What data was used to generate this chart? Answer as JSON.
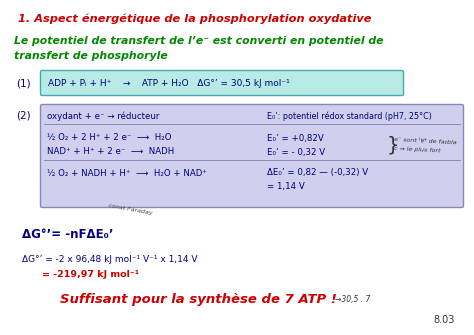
{
  "bg_color": "#ffffff",
  "title": "1. Aspect énergétique de la phosphorylation oxydative",
  "title_color": "#cc0000",
  "subtitle_line1": "Le potentiel de transfert de l’e⁻ est converti en potentiel de",
  "subtitle_line2": "transfert de phosphoryle",
  "subtitle_color": "#008800",
  "box1_bg": "#b8ebe6",
  "box1_border": "#44aaaa",
  "box1_text": "ADP + Pᵢ + H⁺    →    ATP + H₂O   ΔG°’ = 30,5 kJ mol⁻¹",
  "box1_label": "(1)",
  "box2_bg": "#d0d0ee",
  "box2_border": "#8888bb",
  "box2_label": "(2)",
  "box2_header_left": "oxydant + e⁻ → réducteur",
  "box2_header_right": "E₀’: potentiel rédox standard (pH7, 25°C)",
  "box2_line1_left": "½ O₂ + 2 H⁺ + 2 e⁻  ⟶  H₂O",
  "box2_line1_right": "E₀’ = +0,82V",
  "box2_line2_left": "NAD⁺ + H⁺ + 2 e⁻  ⟶  NADH",
  "box2_line2_right": "E₀’ = - 0,32 V",
  "box2_line3_left": "½ O₂ + NADH + H⁺  ⟶  H₂O + NAD⁺",
  "box2_line3_right": "ΔE₀’ = 0,82 — (-0,32) V",
  "box2_line4_right": "= 1,14 V",
  "annotation_line1": "e⁻ sont ᴵⱯ⸢ de fɐɪblə",
  "annotation_line2": "c → le plus fort",
  "formula1_annotation": "const Faraday",
  "formula1": "ΔG°’= -nFΔE₀’",
  "formula2": "ΔG°’ = -2 x 96,48 kJ mol⁻¹ V⁻¹ x 1,14 V",
  "formula3": "= -219,97 kJ mol⁻¹",
  "formula3_color": "#cc0000",
  "conclusion": "Suffisant pour la synthèse de 7 ATP !",
  "conclusion_color": "#cc0000",
  "conclusion_note": "→30,5 . 7",
  "slide_number": "8.03",
  "text_color_dark": "#000080",
  "text_color_black": "#111111"
}
